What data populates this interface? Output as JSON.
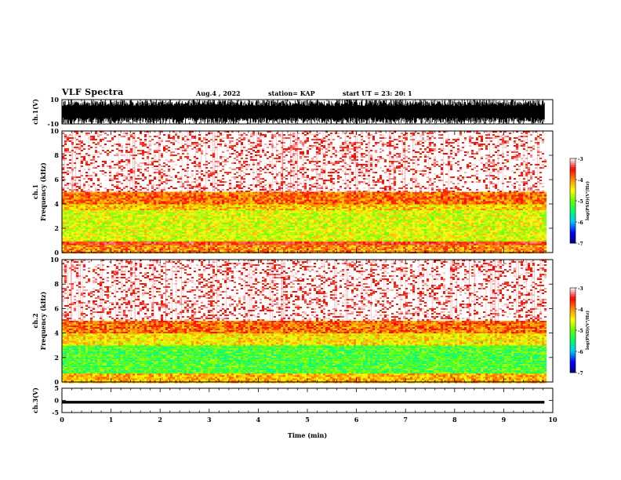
{
  "header": {
    "title": "VLF Spectra",
    "date": "Aug.4 , 2022",
    "station": "station= KAP",
    "start": "start UT = 23: 20: 1"
  },
  "chart_data": [
    {
      "id": "ch1-waveform",
      "type": "line",
      "ylabel": "ch.1(V)",
      "ylim": [
        -10,
        10
      ],
      "y_ticks": [
        "-10",
        "10"
      ],
      "xlim": [
        0,
        10
      ],
      "data_extent_min": 9.83,
      "description_amplitude_V": [
        -10,
        10
      ]
    },
    {
      "id": "ch1-spectrogram",
      "type": "heatmap",
      "ylabel": "ch.1\nFrequency (kHz)",
      "ylim": [
        0,
        10
      ],
      "y_ticks": [
        "0",
        "2",
        "4",
        "6",
        "8",
        "10"
      ],
      "xlim": [
        0,
        10
      ],
      "bands_kHz": [
        {
          "from": 0.0,
          "to": 0.7,
          "level": -4.0
        },
        {
          "from": 0.7,
          "to": 1.0,
          "level": -3.6
        },
        {
          "from": 1.0,
          "to": 3.5,
          "level": -4.6
        },
        {
          "from": 3.5,
          "to": 4.0,
          "level": -4.3
        },
        {
          "from": 4.0,
          "to": 5.0,
          "level": -3.9
        },
        {
          "from": 5.0,
          "to": 10.0,
          "level": -3.25
        }
      ],
      "colorbar": {
        "label": "log(PSD)(V²/Hz)",
        "ticks": [
          "-3",
          "-4",
          "-5",
          "-6",
          "-7"
        ],
        "min": -7,
        "max": -3
      }
    },
    {
      "id": "ch2-spectrogram",
      "type": "heatmap",
      "ylabel": "ch.2\nFrequency (kHz)",
      "ylim": [
        0,
        10
      ],
      "y_ticks": [
        "0",
        "2",
        "4",
        "6",
        "8",
        "10"
      ],
      "xlim": [
        0,
        10
      ],
      "bands_kHz": [
        {
          "from": 0.0,
          "to": 0.8,
          "level": -4.2
        },
        {
          "from": 0.8,
          "to": 3.0,
          "level": -5.2
        },
        {
          "from": 3.0,
          "to": 4.0,
          "level": -4.4
        },
        {
          "from": 4.0,
          "to": 5.0,
          "level": -3.9
        },
        {
          "from": 5.0,
          "to": 10.0,
          "level": -3.25
        }
      ],
      "colorbar": {
        "label": "log(PSD)(V²/Hz)",
        "ticks": [
          "-3",
          "-4",
          "-5",
          "-6",
          "-7"
        ],
        "min": -7,
        "max": -3
      }
    },
    {
      "id": "ch3-waveform",
      "type": "line",
      "ylabel": "ch.3(V)",
      "ylim": [
        -5,
        5
      ],
      "y_ticks": [
        "-5",
        "0",
        "5"
      ],
      "xlim": [
        0,
        10
      ],
      "data_extent_min": 9.83,
      "description_amplitude_V": [
        -1.3,
        -0.2
      ]
    }
  ],
  "x_axis": {
    "label": "Time (min)",
    "ticks": [
      "0",
      "1",
      "2",
      "3",
      "4",
      "5",
      "6",
      "7",
      "8",
      "9",
      "10"
    ]
  },
  "colors": {
    "colormap": [
      "#000080",
      "#0000ff",
      "#00c8ff",
      "#00ff64",
      "#64ff00",
      "#ffff00",
      "#ff8c00",
      "#ff0000",
      "#ffffff"
    ],
    "trace": "#000000"
  }
}
